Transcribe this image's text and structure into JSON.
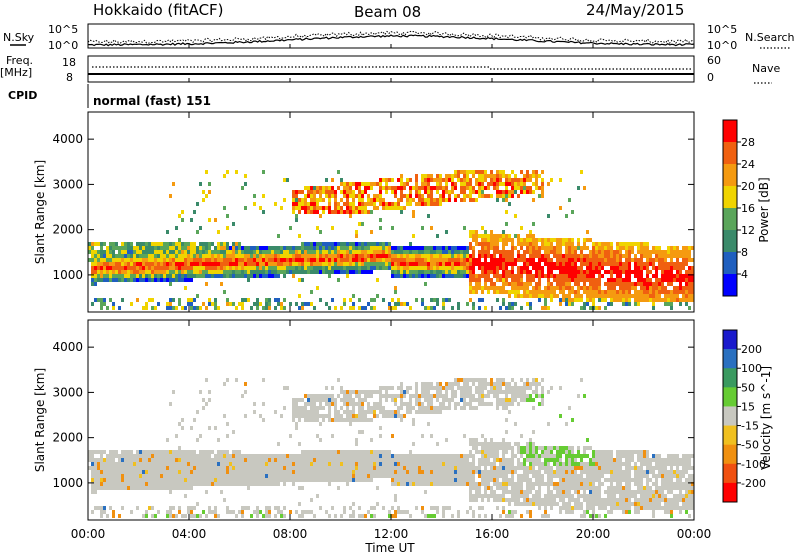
{
  "header": {
    "station": "Hokkaido (fitACF)",
    "beam": "Beam 08",
    "date": "24/May/2015"
  },
  "top_panels": {
    "nsky_label": "N.Sky",
    "nsearch_label": "N.Search",
    "nsky_ticks": [
      "10^5",
      "10^0"
    ],
    "nsky_right_ticks": [
      "10^5",
      "10^0"
    ],
    "freq_label": "Freq.",
    "freq_unit": "[MHz]",
    "freq_ticks": [
      "18",
      "8"
    ],
    "nave_label": "Nave",
    "nave_ticks": [
      "60",
      "0"
    ],
    "cpid_label": "CPID",
    "cpid_value": "normal (fast) 151"
  },
  "x_axis": {
    "label": "Time UT",
    "ticks": [
      "00:00",
      "04:00",
      "08:00",
      "12:00",
      "16:00",
      "20:00",
      "00:00"
    ]
  },
  "chart_data": [
    {
      "type": "heatmap",
      "title": "",
      "xlabel": "Time UT",
      "ylabel": "Slant Range [km]",
      "x_range_hours": [
        0,
        24
      ],
      "ylim": [
        180,
        4600
      ],
      "y_ticks": [
        "1000",
        "2000",
        "3000",
        "4000"
      ],
      "colorbar": {
        "label": "Power [dB]",
        "ticks": [
          "4",
          "8",
          "12",
          "16",
          "20",
          "24",
          "28"
        ],
        "colors": [
          "#0000ff",
          "#1f5fbf",
          "#3a8a6a",
          "#5aa55a",
          "#f0d400",
          "#f59a10",
          "#f06010",
          "#ff0000"
        ]
      }
    },
    {
      "type": "heatmap",
      "title": "",
      "xlabel": "Time UT",
      "ylabel": "Slant Range [km]",
      "x_range_hours": [
        0,
        24
      ],
      "ylim": [
        180,
        4600
      ],
      "y_ticks": [
        "1000",
        "2000",
        "3000",
        "4000"
      ],
      "colorbar": {
        "label": "Velocity [m s^-1]",
        "ticks": [
          "200",
          "100",
          "50",
          "15",
          "-15",
          "-50",
          "-100",
          "-200"
        ],
        "colors": [
          "#1a1acc",
          "#2a70c0",
          "#3a9a60",
          "#66cc33",
          "#c8c8c0",
          "#f0c020",
          "#f09010",
          "#f05010",
          "#ff0000"
        ]
      }
    }
  ]
}
